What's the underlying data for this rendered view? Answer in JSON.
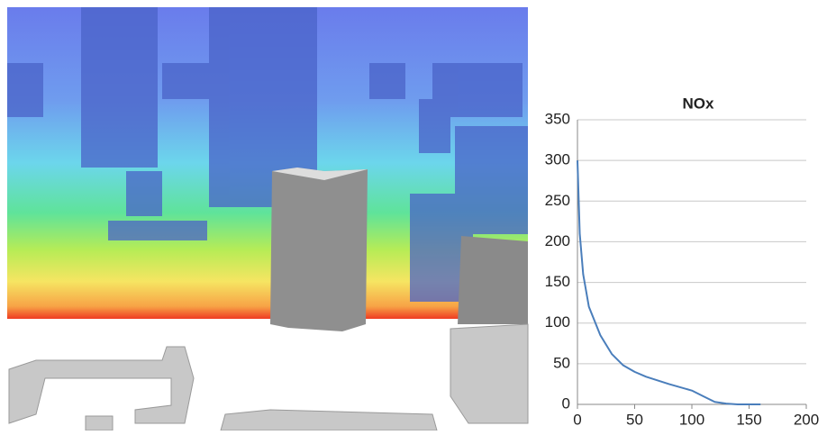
{
  "chart_data": {
    "type": "line",
    "title": "NOx",
    "x": [
      0,
      2,
      5,
      10,
      20,
      30,
      40,
      50,
      60,
      80,
      100,
      110,
      120,
      130,
      140,
      160
    ],
    "values": [
      300,
      210,
      160,
      120,
      85,
      62,
      48,
      40,
      34,
      25,
      17,
      10,
      3,
      1,
      0,
      0
    ],
    "color": "#4a7ebb",
    "xlim": [
      0,
      200
    ],
    "xticks": [
      0,
      50,
      100,
      150,
      200
    ],
    "ylim": [
      0,
      350
    ],
    "yticks": [
      0,
      50,
      100,
      150,
      200,
      250,
      300,
      350
    ],
    "grid": true
  }
}
